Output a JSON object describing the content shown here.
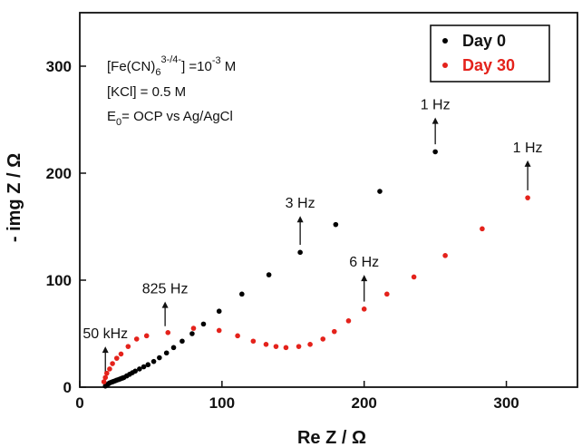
{
  "chart_data": {
    "type": "scatter",
    "xlabel": "Re Z / Ω",
    "ylabel": "- img Z / Ω",
    "xlim": [
      0,
      350
    ],
    "ylim": [
      0,
      350
    ],
    "xticks": [
      0,
      100,
      200,
      300
    ],
    "yticks": [
      0,
      100,
      200,
      300
    ],
    "grid": false,
    "legend_position": "top-right",
    "series": [
      {
        "name": "Day 0",
        "color": "#000000",
        "x": [
          18,
          19,
          20,
          20.5,
          21,
          22,
          23,
          24,
          25,
          26,
          27,
          28,
          29,
          30,
          31,
          33,
          35,
          37,
          39,
          42,
          45,
          48,
          52,
          56,
          61,
          66,
          72,
          79,
          87,
          98,
          114,
          133,
          155,
          180,
          211,
          250
        ],
        "y": [
          1,
          2,
          3,
          3.5,
          4,
          4.5,
          5,
          5.5,
          6,
          6.5,
          7,
          7.5,
          8,
          8.5,
          9,
          10.5,
          12,
          13.5,
          15,
          17,
          19,
          21,
          24,
          27.5,
          32,
          37,
          43,
          50,
          59,
          71,
          87,
          105,
          126,
          152,
          183,
          220
        ]
      },
      {
        "name": "Day 30",
        "color": "#e4221b",
        "x": [
          17,
          18,
          19,
          21,
          23,
          26,
          29,
          34,
          40,
          47,
          62,
          80,
          98,
          111,
          122,
          131,
          138,
          145,
          154,
          162,
          171,
          179,
          189,
          200,
          216,
          235,
          257,
          283,
          315
        ],
        "y": [
          5,
          9,
          13,
          17,
          22,
          27,
          31,
          38,
          45,
          48,
          51,
          55,
          53,
          48,
          43,
          40,
          38,
          37,
          38,
          40,
          45,
          52,
          62,
          73,
          87,
          103,
          123,
          148,
          177
        ]
      }
    ],
    "annotations": [
      {
        "text": "50 kHz",
        "x": 18,
        "y_arrow_from": 12,
        "y_arrow_to": 38
      },
      {
        "text": "825 Hz",
        "x": 60,
        "y_arrow_from": 57,
        "y_arrow_to": 80
      },
      {
        "text": "3 Hz",
        "x": 155,
        "y_arrow_from": 133,
        "y_arrow_to": 160
      },
      {
        "text": "6 Hz",
        "x": 200,
        "y_arrow_from": 80,
        "y_arrow_to": 105
      },
      {
        "text": "1 Hz",
        "x": 250,
        "y_arrow_from": 227,
        "y_arrow_to": 252
      },
      {
        "text": "1 Hz",
        "x": 315,
        "y_arrow_from": 184,
        "y_arrow_to": 212
      }
    ],
    "conditions": [
      "[Fe(CN)6]3-/4- =10-3 M",
      "[KCl] = 0.5 M",
      "E0= OCP vs Ag/AgCl"
    ]
  }
}
